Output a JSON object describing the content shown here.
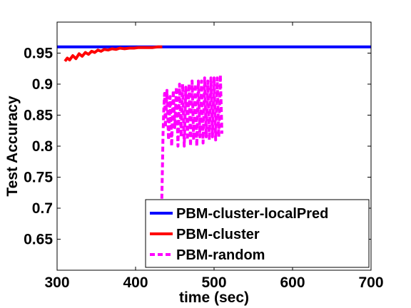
{
  "chart_data": {
    "type": "line",
    "title": "",
    "xlabel": "time (sec)",
    "ylabel": "Test Accuracy",
    "xlim": [
      300,
      700
    ],
    "ylim": [
      0.6,
      1.0
    ],
    "xticks": [
      300,
      400,
      500,
      600,
      700
    ],
    "xtick_labels": [
      "300",
      "400",
      "500",
      "600",
      "700"
    ],
    "yticks": [
      0.65,
      0.7,
      0.75,
      0.8,
      0.85,
      0.9,
      0.95
    ],
    "ytick_labels": [
      "0.65",
      "0.7",
      "0.75",
      "0.8",
      "0.85",
      "0.9",
      "0.95"
    ],
    "grid": false,
    "legend_position": "bottom-right",
    "series": [
      {
        "name": "PBM-cluster-localPred",
        "color": "#0000ff",
        "style": "solid",
        "x": [
          300,
          700
        ],
        "y": [
          0.96,
          0.96
        ]
      },
      {
        "name": "PBM-cluster",
        "color": "#ff0000",
        "style": "solid",
        "x": [
          310,
          313,
          316,
          320,
          324,
          328,
          332,
          336,
          340,
          344,
          348,
          352,
          356,
          360,
          365,
          370,
          375,
          380,
          386,
          392,
          398,
          404,
          410,
          416,
          422,
          428,
          434
        ],
        "y": [
          0.937,
          0.942,
          0.939,
          0.946,
          0.941,
          0.949,
          0.945,
          0.951,
          0.948,
          0.953,
          0.951,
          0.955,
          0.953,
          0.956,
          0.955,
          0.957,
          0.956,
          0.958,
          0.957,
          0.958,
          0.958,
          0.959,
          0.959,
          0.959,
          0.959,
          0.96,
          0.96
        ]
      },
      {
        "name": "PBM-random",
        "color": "#ff00ff",
        "style": "dashed",
        "x": [
          433,
          434,
          435,
          436,
          437,
          438,
          440,
          442,
          444,
          446,
          448,
          450,
          452,
          454,
          456,
          458,
          460,
          462,
          464,
          466,
          468,
          470,
          472,
          474,
          476,
          478,
          480,
          482,
          484,
          486,
          488,
          490,
          492,
          494,
          496,
          498,
          500,
          502,
          504,
          506,
          508,
          510
        ],
        "y": [
          0.69,
          0.75,
          0.82,
          0.86,
          0.885,
          0.83,
          0.89,
          0.81,
          0.88,
          0.8,
          0.89,
          0.83,
          0.895,
          0.8,
          0.9,
          0.815,
          0.9,
          0.8,
          0.895,
          0.81,
          0.9,
          0.8,
          0.905,
          0.81,
          0.9,
          0.8,
          0.905,
          0.815,
          0.905,
          0.805,
          0.91,
          0.815,
          0.905,
          0.81,
          0.91,
          0.815,
          0.91,
          0.81,
          0.91,
          0.815,
          0.915,
          0.82
        ]
      }
    ]
  }
}
